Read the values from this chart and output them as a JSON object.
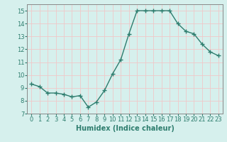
{
  "x": [
    0,
    1,
    2,
    3,
    4,
    5,
    6,
    7,
    8,
    9,
    10,
    11,
    12,
    13,
    14,
    15,
    16,
    17,
    18,
    19,
    20,
    21,
    22,
    23
  ],
  "y": [
    9.3,
    9.1,
    8.6,
    8.6,
    8.5,
    8.3,
    8.4,
    7.5,
    7.9,
    8.8,
    10.1,
    11.2,
    13.2,
    15.0,
    15.0,
    15.0,
    15.0,
    15.0,
    14.0,
    13.4,
    13.2,
    12.4,
    11.8,
    11.5
  ],
  "line_color": "#2e7d6e",
  "marker": "+",
  "marker_size": 4,
  "line_width": 1.0,
  "bg_color": "#d6f0ed",
  "grid_color_major": "#f0c8c8",
  "grid_color_minor": "#f0c8c8",
  "xlabel": "Humidex (Indice chaleur)",
  "xlabel_fontsize": 7,
  "tick_fontsize": 6,
  "xlim": [
    -0.5,
    23.5
  ],
  "ylim": [
    7,
    15.5
  ],
  "yticks": [
    7,
    8,
    9,
    10,
    11,
    12,
    13,
    14,
    15
  ],
  "xticks": [
    0,
    1,
    2,
    3,
    4,
    5,
    6,
    7,
    8,
    9,
    10,
    11,
    12,
    13,
    14,
    15,
    16,
    17,
    18,
    19,
    20,
    21,
    22,
    23
  ],
  "spine_color": "#888888"
}
